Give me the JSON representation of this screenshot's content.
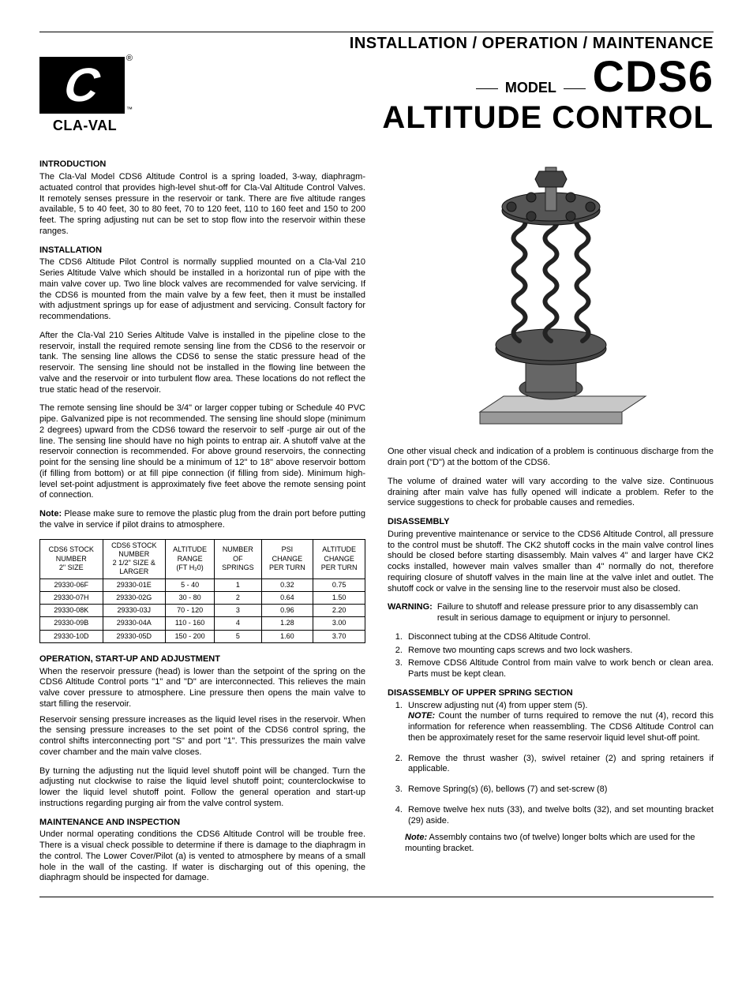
{
  "header": {
    "subtitle": "INSTALLATION / OPERATION / MAINTENANCE",
    "model_word": "MODEL",
    "model_code": "CDS6",
    "product_name": "ALTITUDE CONTROL",
    "logo_name": "CLA-VAL",
    "logo_reg": "®",
    "logo_tm": "™"
  },
  "sections": {
    "introduction": {
      "title": "INTRODUCTION",
      "body": "The Cla-Val Model CDS6 Altitude Control is a spring loaded, 3-way, diaphragm-actuated control that provides high-level shut-off for Cla-Val Altitude Control Valves. It remotely senses pressure in the reservoir or tank. There are five altitude ranges available, 5 to 40 feet, 30 to 80 feet, 70 to 120 feet, 110 to 160 feet and 150 to 200 feet. The spring adjusting nut can be set to stop flow into the reservoir within these ranges."
    },
    "installation": {
      "title": "INSTALLATION",
      "p1": "The CDS6 Altitude Pilot Control is normally supplied mounted on a Cla-Val 210 Series Altitude Valve which should be installed in a horizontal run of pipe with the main valve cover up. Two line block valves are recommended for valve servicing. If the CDS6 is mounted from the main valve by a few feet, then it must be installed with adjustment springs up for ease of adjustment and servicing. Consult factory for recommendations.",
      "p2": "After the Cla-Val 210 Series Altitude Valve is installed in the pipeline close to the reservoir, install the required remote sensing line from the CDS6 to the reservoir or tank. The sensing line allows the CDS6 to sense the static pressure head of the reservoir. The sensing line should not be installed in the flowing line between the valve and the reservoir or into turbulent flow area. These locations do not reflect the true static head of the reservoir.",
      "p3": "The remote sensing line should be 3/4\" or larger copper tubing or Schedule 40 PVC pipe. Galvanized pipe is not recommended. The sensing line should slope (minimum 2 degrees) upward from the CDS6 toward the reservoir to self -purge air out of the line.  The sensing line should have no high points to entrap air. A shutoff valve at the reservoir connection is recommended. For above ground reservoirs, the connecting point for the sensing line should be a minimum of 12\" to 18\" above reservoir bottom (if filling from bottom) or at fill pipe connection (if filling from side). Minimum high-level set-point adjustment is approximately five feet above the remote sensing point of connection.",
      "note_label": "Note:",
      "note_body": " Please make sure to remove the plastic plug from the drain port before putting the valve in service if pilot drains to atmosphere."
    },
    "table": {
      "headers": {
        "c1a": "CDS6 STOCK",
        "c1b": "NUMBER",
        "c1c": "2\" SIZE",
        "c2a": "CDS6 STOCK",
        "c2b": "NUMBER",
        "c2c": "2 1/2\" SIZE &",
        "c2d": "LARGER",
        "c3a": "ALTITUDE",
        "c3b": "RANGE",
        "c3c": "(FT H₂0)",
        "c4a": "NUMBER",
        "c4b": "OF",
        "c4c": "SPRINGS",
        "c5a": "PSI",
        "c5b": "CHANGE",
        "c5c": "PER TURN",
        "c6a": "ALTITUDE",
        "c6b": "CHANGE",
        "c6c": "PER TURN"
      },
      "rows": [
        {
          "c1": "29330-06F",
          "c2": "29330-01E",
          "c3": "5 - 40",
          "c4": "1",
          "c5": "0.32",
          "c6": "0.75"
        },
        {
          "c1": "29330-07H",
          "c2": "29330-02G",
          "c3": "30 - 80",
          "c4": "2",
          "c5": "0.64",
          "c6": "1.50"
        },
        {
          "c1": "29330-08K",
          "c2": "29330-03J",
          "c3": "70 - 120",
          "c4": "3",
          "c5": "0.96",
          "c6": "2.20"
        },
        {
          "c1": "29330-09B",
          "c2": "29330-04A",
          "c3": "110 - 160",
          "c4": "4",
          "c5": "1.28",
          "c6": "3.00"
        },
        {
          "c1": "29330-10D",
          "c2": "29330-05D",
          "c3": "150 - 200",
          "c4": "5",
          "c5": "1.60",
          "c6": "3.70"
        }
      ]
    },
    "operation": {
      "title": "OPERATION, START-UP AND ADJUSTMENT",
      "p1": "When the reservoir pressure (head) is lower than the setpoint of the spring on the CDS6 Altitude Control ports \"1\" and \"D\" are interconnected. This relieves the main valve cover pressure to atmosphere. Line pressure then opens the main valve to start filling the reservoir.",
      "p2": "Reservoir sensing pressure increases as the liquid level rises in the reservoir. When the sensing pressure increases to the set point of the CDS6 control spring, the control shifts interconnecting port \"S\" and port \"1\". This pressurizes the main valve cover chamber and the main valve closes.",
      "p3": "By turning the adjusting nut the liquid level shutoff point will be changed. Turn the adjusting nut clockwise to raise the liquid level shutoff point; counterclockwise to lower the liquid level shutoff point. Follow the general operation and start-up instructions regarding purging air from the valve control system."
    },
    "maintenance": {
      "title": "MAINTENANCE AND INSPECTION",
      "p1": "Under normal operating conditions the CDS6 Altitude Control will be trouble free. There is a visual check possible to determine if there is damage to the diaphragm in the control. The Lower Cover/Pilot (a) is vented to atmosphere by means of a small hole in the wall of the casting. If water is discharging out of this opening, the diaphragm should be inspected for damage."
    },
    "rightcol": {
      "p1": "One other visual check and indication of a problem is continuous discharge from the drain port (\"D\") at the bottom of the CDS6.",
      "p2": "The volume of drained water will vary according to the valve size. Continuous draining after main valve has fully opened will indicate a problem. Refer to the service suggestions to check for probable causes and remedies."
    },
    "disassembly": {
      "title": "DISASSEMBLY",
      "p1": "During preventive maintenance or service to the CDS6 Altitude Control, all pressure to the control must be shutoff. The CK2 shutoff cocks in the main valve control lines should be closed before starting disassembly. Main valves 4\" and larger have CK2 cocks installed, however main valves smaller than 4\" normally do not, therefore requiring closure of shutoff valves in the main line at the valve inlet and outlet. The shutoff cock or valve in the sensing line to the reservoir must also be closed.",
      "warning_label": "WARNING:",
      "warning_body": "Failure to shutoff and release pressure prior to any disassembly can result in serious damage to equipment or injury to personnel.",
      "steps": {
        "s1": "Disconnect tubing at the CDS6 Altitude Control.",
        "s2": "Remove two mounting caps screws and two lock washers.",
        "s3": "Remove CDS6 Altitude Control from main valve to work bench or clean area. Parts must be kept clean."
      }
    },
    "upper_spring": {
      "title": "DISASSEMBLY OF UPPER SPRING SECTION",
      "s1_lead": "Unscrew adjusting nut (4) from upper stem (5).",
      "s1_note_label": "NOTE:",
      "s1_note_body": " Count the number of turns required to remove the nut (4), record this information for reference when reassembling. The CDS6 Altitude Control can then be approximately reset for the same reservoir liquid level shut-off point.",
      "s2": "Remove the thrust washer (3), swivel retainer (2) and spring retainers if applicable.",
      "s3": "Remove Spring(s) (6), bellows (7) and set-screw (8)",
      "s4": "Remove twelve hex nuts (33), and twelve bolts (32), and set mounting bracket (29) aside.",
      "end_note_label": "Note:",
      "end_note_body": " Assembly contains two (of twelve) longer bolts which are used for the mounting bracket."
    }
  }
}
